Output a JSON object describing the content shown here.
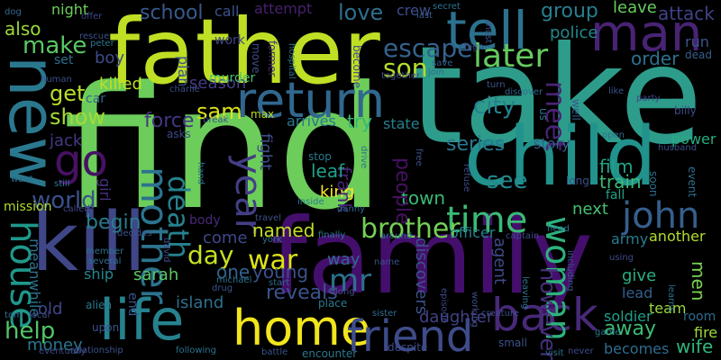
{
  "background": "#000000",
  "words": [
    {
      "text": "find",
      "color": "#6ccd5a",
      "rot": 0
    },
    {
      "text": "take",
      "color": "#2e9c8b",
      "rot": 0
    },
    {
      "text": "father",
      "color": "#bfdf25",
      "rot": 0
    },
    {
      "text": "family",
      "color": "#440f6c",
      "rot": 0
    },
    {
      "text": "kill",
      "color": "#3f4788",
      "rot": 0
    },
    {
      "text": "child",
      "color": "#21928c",
      "rot": 0
    },
    {
      "text": "new",
      "color": "#2a788e",
      "rot": 90
    },
    {
      "text": "life",
      "color": "#26828e",
      "rot": 0
    },
    {
      "text": "man",
      "color": "#482374",
      "rot": 0
    },
    {
      "text": "return",
      "color": "#31678e",
      "rot": 0
    },
    {
      "text": "tell",
      "color": "#2c728e",
      "rot": 0
    },
    {
      "text": "back",
      "color": "#482979",
      "rot": 0
    },
    {
      "text": "home",
      "color": "#f1e51d",
      "rot": 0
    },
    {
      "text": "friend",
      "color": "#3e4c8a",
      "rot": 0
    },
    {
      "text": "house",
      "color": "#1f988b",
      "rot": 90
    },
    {
      "text": "go",
      "color": "#471164",
      "rot": 0
    },
    {
      "text": "mother",
      "color": "#2c738e",
      "rot": 90
    },
    {
      "text": "john",
      "color": "#355f8d",
      "rot": 0
    },
    {
      "text": "year",
      "color": "#433e85",
      "rot": 90
    },
    {
      "text": "time",
      "color": "#3aba76",
      "rot": 0
    },
    {
      "text": "woman",
      "color": "#2db27d",
      "rot": 90
    },
    {
      "text": "later",
      "color": "#65cb5e",
      "rot": 0
    },
    {
      "text": "death",
      "color": "#26818e",
      "rot": 90
    },
    {
      "text": "escape",
      "color": "#33638d",
      "rot": 0
    },
    {
      "text": "brother",
      "color": "#75d054",
      "rot": 0
    },
    {
      "text": "war",
      "color": "#dde318",
      "rot": 0
    },
    {
      "text": "day",
      "color": "#c8e020",
      "rot": 0
    },
    {
      "text": "mr",
      "color": "#2d718e",
      "rot": 0
    },
    {
      "text": "son",
      "color": "#b5de2b",
      "rot": 0
    },
    {
      "text": "see",
      "color": "#23898e",
      "rot": 0
    },
    {
      "text": "make",
      "color": "#5ac864",
      "rot": 0
    },
    {
      "text": "world",
      "color": "#3b518b",
      "rot": 0
    },
    {
      "text": "sam",
      "color": "#dde318",
      "rot": 0
    },
    {
      "text": "help",
      "color": "#52c569",
      "rot": 0
    },
    {
      "text": "school",
      "color": "#375a8c",
      "rot": 0
    },
    {
      "text": "love",
      "color": "#2e6e8e",
      "rot": 0
    },
    {
      "text": "get",
      "color": "#b8de29",
      "rot": 0
    },
    {
      "text": "show",
      "color": "#a5db36",
      "rot": 0
    },
    {
      "text": "meet",
      "color": "#482475",
      "rot": 90
    },
    {
      "text": "city",
      "color": "#26818e",
      "rot": 0
    },
    {
      "text": "group",
      "color": "#277f8e",
      "rot": 0
    },
    {
      "text": "also",
      "color": "#99d83d",
      "rot": 0
    },
    {
      "text": "force",
      "color": "#453581",
      "rot": 0
    },
    {
      "text": "reveals",
      "color": "#3a538b",
      "rot": 0
    },
    {
      "text": "away",
      "color": "#3dbc74",
      "rot": 0
    },
    {
      "text": "however",
      "color": "#472f7d",
      "rot": 90
    },
    {
      "text": "begin",
      "color": "#287d8e",
      "rot": 0
    },
    {
      "text": "series",
      "color": "#2a778e",
      "rot": 0
    },
    {
      "text": "named",
      "color": "#c5df22",
      "rot": 0
    },
    {
      "text": "killed",
      "color": "#c0df25",
      "rot": 0
    },
    {
      "text": "order",
      "color": "#2c718e",
      "rot": 0
    },
    {
      "text": "leave",
      "color": "#67cc5c",
      "rot": 0
    },
    {
      "text": "attack",
      "color": "#414287",
      "rot": 0
    },
    {
      "text": "police",
      "color": "#23888e",
      "rot": 0
    },
    {
      "text": "film",
      "color": "#20a386",
      "rot": 0
    },
    {
      "text": "power",
      "color": "#26ad81",
      "rot": 0
    },
    {
      "text": "story",
      "color": "#365d8d",
      "rot": 0
    },
    {
      "text": "town",
      "color": "#38b977",
      "rot": 0
    },
    {
      "text": "people",
      "color": "#471164",
      "rot": 90
    },
    {
      "text": "young",
      "color": "#3b518b",
      "rot": 0
    },
    {
      "text": "sarah",
      "color": "#5ac864",
      "rot": 0
    },
    {
      "text": "one",
      "color": "#32648e",
      "rot": 0
    },
    {
      "text": "come",
      "color": "#3f4889",
      "rot": 0
    },
    {
      "text": "body",
      "color": "#482878",
      "rot": 0
    },
    {
      "text": "king",
      "color": "#fde725",
      "rot": 0
    },
    {
      "text": "frank",
      "color": "#482475",
      "rot": 90
    },
    {
      "text": "leaf",
      "color": "#1fa188",
      "rot": 0
    },
    {
      "text": "fight",
      "color": "#3d4d8a",
      "rot": 90
    },
    {
      "text": "arrives",
      "color": "#2a788e",
      "rot": 0
    },
    {
      "text": "try",
      "color": "#35b779",
      "rot": 0
    },
    {
      "text": "state",
      "color": "#277f8e",
      "rot": 0
    },
    {
      "text": "jack",
      "color": "#453781",
      "rot": 0
    },
    {
      "text": "season",
      "color": "#433d84",
      "rot": 0
    },
    {
      "text": "car",
      "color": "#31688e",
      "rot": 0
    },
    {
      "text": "boy",
      "color": "#3d4d8a",
      "rot": 0
    },
    {
      "text": "work",
      "color": "#3f4788",
      "rot": 0
    },
    {
      "text": "plan",
      "color": "#3a538b",
      "rot": 90
    },
    {
      "text": "night",
      "color": "#6ccd5a",
      "rot": 0
    },
    {
      "text": "call",
      "color": "#3b528b",
      "rot": 0
    },
    {
      "text": "attempt",
      "color": "#481f70",
      "rot": 0
    },
    {
      "text": "crew",
      "color": "#3d4e8a",
      "rot": 0
    },
    {
      "text": "next",
      "color": "#46c06f",
      "rot": 0
    },
    {
      "text": "train",
      "color": "#3aba76",
      "rot": 0
    },
    {
      "text": "fall",
      "color": "#1fa287",
      "rot": 0
    },
    {
      "text": "army",
      "color": "#287c8e",
      "rot": 0
    },
    {
      "text": "another",
      "color": "#b2dd2d",
      "rot": 0
    },
    {
      "text": "give",
      "color": "#29af7f",
      "rot": 0
    },
    {
      "text": "lead",
      "color": "#355f8d",
      "rot": 0
    },
    {
      "text": "team",
      "color": "#9bd93c",
      "rot": 0
    },
    {
      "text": "room",
      "color": "#2f6b8e",
      "rot": 0
    },
    {
      "text": "fire",
      "color": "#9fda3a",
      "rot": 0
    },
    {
      "text": "men",
      "color": "#7ad151",
      "rot": 90
    },
    {
      "text": "wife",
      "color": "#31b57b",
      "rot": 0
    },
    {
      "text": "becomes",
      "color": "#2f6c8e",
      "rot": 0
    },
    {
      "text": "soldier",
      "color": "#1f9e89",
      "rot": 0
    },
    {
      "text": "daughter",
      "color": "#424186",
      "rot": 0
    },
    {
      "text": "agent",
      "color": "#3e4a89",
      "rot": 90
    },
    {
      "text": "discovers",
      "color": "#3b528b",
      "rot": 90
    },
    {
      "text": "officer",
      "color": "#26828e",
      "rot": 0
    },
    {
      "text": "way",
      "color": "#31688e",
      "rot": 0
    },
    {
      "text": "island",
      "color": "#2e6f8e",
      "rot": 0
    },
    {
      "text": "ship",
      "color": "#24878e",
      "rot": 0
    },
    {
      "text": "money",
      "color": "#2a768e",
      "rot": 0
    },
    {
      "text": "old",
      "color": "#404688",
      "rot": 0
    },
    {
      "text": "end",
      "color": "#3b528b",
      "rot": 90
    },
    {
      "text": "girl",
      "color": "#46337e",
      "rot": 90
    },
    {
      "text": "meanwhile",
      "color": "#2d718e",
      "rot": 90
    },
    {
      "text": "mission",
      "color": "#b0dd2f",
      "rot": 0
    },
    {
      "text": "called",
      "color": "#3f4889",
      "rot": 0
    },
    {
      "text": "still",
      "color": "#2a788e",
      "rot": 0
    },
    {
      "text": "want",
      "color": "#2e6e8e",
      "rot": 0
    },
    {
      "text": "dog",
      "color": "#31688e",
      "rot": 0
    },
    {
      "text": "human",
      "color": "#3d4e8a",
      "rot": 0
    },
    {
      "text": "set",
      "color": "#2d708e",
      "rot": 0
    },
    {
      "text": "peter",
      "color": "#2a788e",
      "rot": 0
    },
    {
      "text": "rescue",
      "color": "#3b518b",
      "rot": 0
    },
    {
      "text": "offer",
      "color": "#3e4989",
      "rot": 0
    },
    {
      "text": "murder",
      "color": "#46c06f",
      "rot": 0
    },
    {
      "text": "move",
      "color": "#3d4e8a",
      "rot": 90
    },
    {
      "text": "former",
      "color": "#472d7b",
      "rot": 90
    },
    {
      "text": "hospital",
      "color": "#2d718e",
      "rot": 90
    },
    {
      "text": "become",
      "color": "#3e4c8a",
      "rot": 90
    },
    {
      "text": "last",
      "color": "#38598c",
      "rot": 0
    },
    {
      "text": "secret",
      "color": "#2c728e",
      "rot": 0
    },
    {
      "text": "must",
      "color": "#3b528b",
      "rot": 90
    },
    {
      "text": "high",
      "color": "#3e4a89",
      "rot": 0
    },
    {
      "text": "save",
      "color": "#35608d",
      "rot": 0
    },
    {
      "text": "join",
      "color": "#2e6e8e",
      "rot": 0
    },
    {
      "text": "together",
      "color": "#3e4a89",
      "rot": 0
    },
    {
      "text": "turn",
      "color": "#3a548c",
      "rot": 0
    },
    {
      "text": "discover",
      "color": "#31688e",
      "rot": 0
    },
    {
      "text": "us",
      "color": "#2b748e",
      "rot": 90
    },
    {
      "text": "well",
      "color": "#375b8d",
      "rot": 90
    },
    {
      "text": "like",
      "color": "#3b528b",
      "rot": 0
    },
    {
      "text": "party",
      "color": "#404688",
      "rot": 0
    },
    {
      "text": "billy",
      "color": "#3e4a89",
      "rot": 0
    },
    {
      "text": "run",
      "color": "#39558c",
      "rot": 0
    },
    {
      "text": "dead",
      "color": "#355f8d",
      "rot": 0
    },
    {
      "text": "charlie",
      "color": "#3d4e8a",
      "rot": 0
    },
    {
      "text": "break",
      "color": "#3b528b",
      "rot": 0
    },
    {
      "text": "max",
      "color": "#bddf26",
      "rot": 0
    },
    {
      "text": "asks",
      "color": "#3e4a89",
      "rot": 0
    },
    {
      "text": "hand",
      "color": "#2c728e",
      "rot": 90
    },
    {
      "text": "stop",
      "color": "#2a788e",
      "rot": 0
    },
    {
      "text": "drive",
      "color": "#2c728e",
      "rot": 90
    },
    {
      "text": "free",
      "color": "#3b528b",
      "rot": 90
    },
    {
      "text": "refuse",
      "color": "#3e4a89",
      "rot": 90
    },
    {
      "text": "open",
      "color": "#2d718e",
      "rot": 0
    },
    {
      "text": "long",
      "color": "#3b528b",
      "rot": 0
    },
    {
      "text": "soon",
      "color": "#2e6e8e",
      "rot": 90
    },
    {
      "text": "husband",
      "color": "#3d4e8a",
      "rot": 0
    },
    {
      "text": "event",
      "color": "#2e6e8e",
      "rot": 90
    },
    {
      "text": "head",
      "color": "#2a768e",
      "rot": 0
    },
    {
      "text": "danny",
      "color": "#31688e",
      "rot": 0
    },
    {
      "text": "inside",
      "color": "#2a788e",
      "rot": 0
    },
    {
      "text": "travel",
      "color": "#3b528b",
      "rot": 0
    },
    {
      "text": "york",
      "color": "#2e6e8e",
      "rot": 0
    },
    {
      "text": "finally",
      "color": "#2a788e",
      "rot": 0
    },
    {
      "text": "around",
      "color": "#2d718e",
      "rot": 0
    },
    {
      "text": "captain",
      "color": "#3e4a89",
      "rot": 0
    },
    {
      "text": "decides",
      "color": "#3b528b",
      "rot": 0
    },
    {
      "text": "david",
      "color": "#3d4e8a",
      "rot": 90
    },
    {
      "text": "member",
      "color": "#2c728e",
      "rot": 0
    },
    {
      "text": "several",
      "color": "#2e6e8e",
      "rot": 0
    },
    {
      "text": "michael",
      "color": "#2c728e",
      "rot": 0
    },
    {
      "text": "drug",
      "color": "#3b528b",
      "rot": 0
    },
    {
      "text": "start",
      "color": "#2e6e8e",
      "rot": 0
    },
    {
      "text": "along",
      "color": "#3e4a89",
      "rot": 0
    },
    {
      "text": "place",
      "color": "#2a788e",
      "rot": 0
    },
    {
      "text": "name",
      "color": "#3b528b",
      "rot": 0
    },
    {
      "text": "episode",
      "color": "#3e4a89",
      "rot": 90
    },
    {
      "text": "working",
      "color": "#3d4e8a",
      "rot": 90
    },
    {
      "text": "leaving",
      "color": "#2d718e",
      "rot": 90
    },
    {
      "text": "including",
      "color": "#3b528b",
      "rot": 90
    },
    {
      "text": "using",
      "color": "#3e4a89",
      "rot": 0
    },
    {
      "text": "learns",
      "color": "#2e6e8e",
      "rot": 90
    },
    {
      "text": "alien",
      "color": "#2a788e",
      "rot": 0
    },
    {
      "text": "upon",
      "color": "#3b528b",
      "rot": 0
    },
    {
      "text": "tom",
      "color": "#2e6e8e",
      "rot": 0
    },
    {
      "text": "local",
      "color": "#3d4e8a",
      "rot": 0
    },
    {
      "text": "relationship",
      "color": "#3b528b",
      "rot": 0
    },
    {
      "text": "eventually",
      "color": "#3e4a89",
      "rot": 0
    },
    {
      "text": "following",
      "color": "#2c728e",
      "rot": 0
    },
    {
      "text": "battle",
      "color": "#3b528b",
      "rot": 0
    },
    {
      "text": "encounter",
      "color": "#2a788e",
      "rot": 0
    },
    {
      "text": "despite",
      "color": "#3e4a89",
      "rot": 0
    },
    {
      "text": "sister",
      "color": "#2e6e8e",
      "rot": 0
    },
    {
      "text": "creature",
      "color": "#3d4e8a",
      "rot": 0
    },
    {
      "text": "small",
      "color": "#3b528b",
      "rot": 0
    },
    {
      "text": "visit",
      "color": "#2c728e",
      "rot": 0
    },
    {
      "text": "never",
      "color": "#3e4a89",
      "rot": 0
    },
    {
      "text": "game",
      "color": "#2a788e",
      "rot": 0
    }
  ]
}
